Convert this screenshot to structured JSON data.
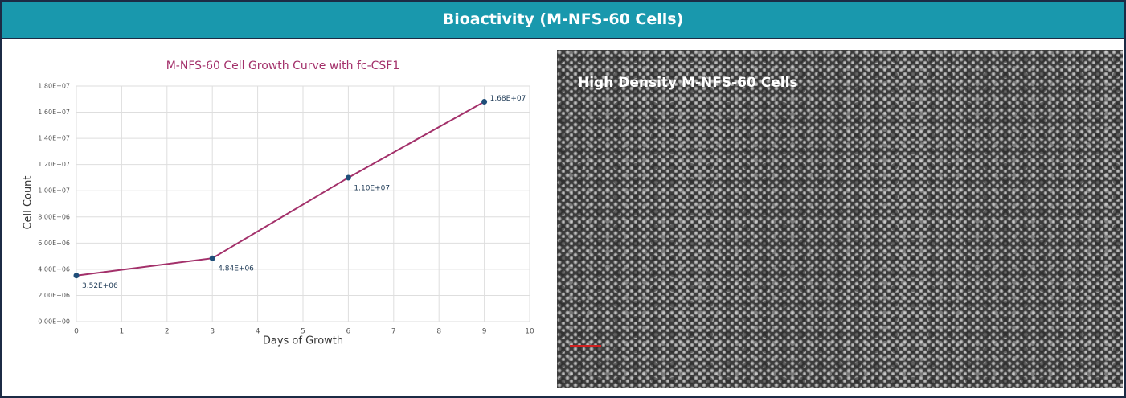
{
  "header": {
    "title": "Bioactivity (M-NFS-60 Cells)"
  },
  "chart_data": {
    "type": "line",
    "title": "M-NFS-60 Cell Growth Curve with fc-CSF1",
    "x_label": "Days of Growth",
    "y_label": "Cell Count",
    "x": [
      0,
      3,
      6,
      9
    ],
    "series": [
      {
        "name": "Cell Count",
        "color": "#a3306a",
        "marker_color": "#1f4e79",
        "values": [
          3520000,
          4840000,
          11000000,
          16800000
        ],
        "value_labels": [
          "3.52E+06",
          "4.84E+06",
          "1.10E+07",
          "1.68E+07"
        ]
      }
    ],
    "xlim": [
      0,
      10
    ],
    "xticks": [
      0,
      1,
      2,
      3,
      4,
      5,
      6,
      7,
      8,
      9,
      10
    ],
    "ylim": [
      0,
      18000000
    ],
    "yticks": [
      {
        "value": 0,
        "label": "0.00E+00"
      },
      {
        "value": 2000000,
        "label": "2.00E+06"
      },
      {
        "value": 4000000,
        "label": "4.00E+06"
      },
      {
        "value": 6000000,
        "label": "6.00E+06"
      },
      {
        "value": 8000000,
        "label": "8.00E+06"
      },
      {
        "value": 10000000,
        "label": "1.00E+07"
      },
      {
        "value": 12000000,
        "label": "1.20E+07"
      },
      {
        "value": 14000000,
        "label": "1.40E+07"
      },
      {
        "value": 16000000,
        "label": "1.60E+07"
      },
      {
        "value": 18000000,
        "label": "1.80E+07"
      }
    ],
    "grid": true
  },
  "image": {
    "caption": "High Density M-NFS-60 Cells"
  }
}
